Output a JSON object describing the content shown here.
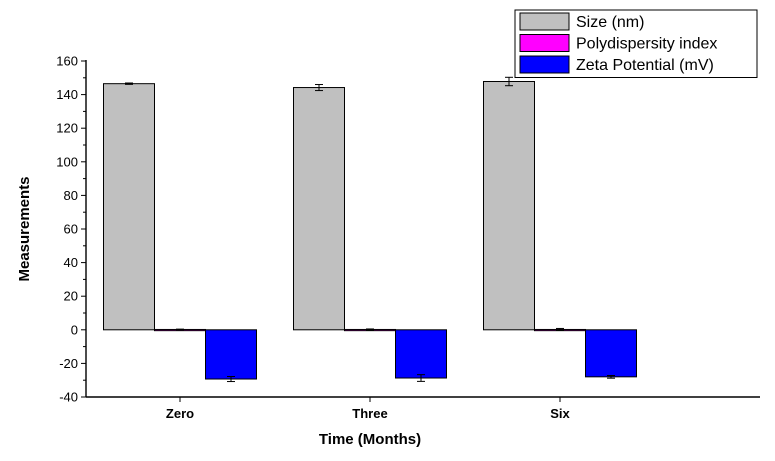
{
  "chart_data": {
    "type": "bar",
    "title": "",
    "xlabel": "Time (Months)",
    "ylabel": "Measurements",
    "categories": [
      "Zero",
      "Three",
      "Six"
    ],
    "ylim": [
      -40,
      160
    ],
    "yticks": [
      -40,
      -20,
      0,
      20,
      40,
      60,
      80,
      100,
      120,
      140,
      160
    ],
    "grid": false,
    "legend_position": "top-right",
    "series": [
      {
        "name": "Size  (nm)",
        "color": "#c0c0c0",
        "values": [
          146.5,
          144.2,
          147.8
        ],
        "errors": [
          0.4,
          1.8,
          2.5
        ]
      },
      {
        "name": "Polydispersity index",
        "color": "#ff00ff",
        "values": [
          0.2,
          0.2,
          0.2
        ],
        "errors": [
          0.2,
          0.3,
          0.6
        ]
      },
      {
        "name": "Zeta Potential  (mV)",
        "color": "#0000ff",
        "values": [
          -29.3,
          -28.7,
          -28.0
        ],
        "errors": [
          1.5,
          2.0,
          0.8
        ]
      }
    ]
  }
}
